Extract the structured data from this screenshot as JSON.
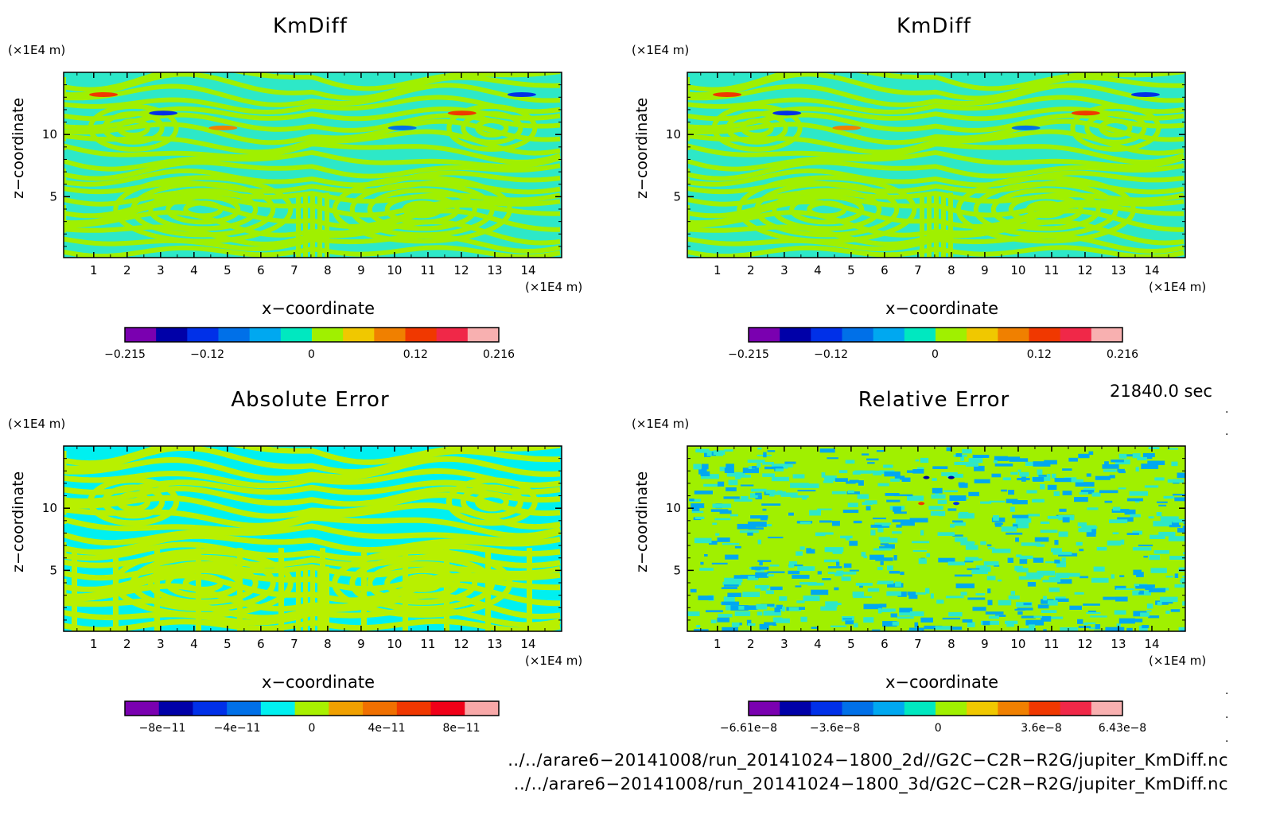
{
  "chart_data": [
    {
      "type": "heatmap",
      "title": "KmDiff",
      "xlabel": "x−coordinate",
      "ylabel": "z−coordinate",
      "x_unit": "(×1E4 m)",
      "z_unit": "(×1E4 m)",
      "x_ticks": [
        "1",
        "2",
        "3",
        "4",
        "5",
        "6",
        "7",
        "8",
        "9",
        "10",
        "11",
        "12",
        "13",
        "14"
      ],
      "z_ticks": [
        "5",
        "10"
      ],
      "xlim": [
        0.1,
        15
      ],
      "zlim": [
        0.1,
        15
      ],
      "colorbar": {
        "colors": [
          "#7a00b0",
          "#0000a8",
          "#0030e8",
          "#0070e8",
          "#00a8f0",
          "#00e8c0",
          "#a0f000",
          "#f0c800",
          "#f08000",
          "#f03800",
          "#f02848",
          "#f8b0b0"
        ],
        "tick_labels": [
          "−0.215",
          "−0.12",
          "0",
          "0.12",
          "0.216"
        ],
        "tick_values": [
          -0.215,
          -0.12,
          0,
          0.12,
          0.216
        ],
        "range": [
          -0.215,
          0.216
        ]
      },
      "style": "smooth"
    },
    {
      "type": "heatmap",
      "title": "KmDiff",
      "xlabel": "x−coordinate",
      "ylabel": "z−coordinate",
      "x_unit": "(×1E4 m)",
      "z_unit": "(×1E4 m)",
      "x_ticks": [
        "1",
        "2",
        "3",
        "4",
        "5",
        "6",
        "7",
        "8",
        "9",
        "10",
        "11",
        "12",
        "13",
        "14"
      ],
      "z_ticks": [
        "5",
        "10"
      ],
      "xlim": [
        0.1,
        15
      ],
      "zlim": [
        0.1,
        15
      ],
      "colorbar": {
        "colors": [
          "#7a00b0",
          "#0000a8",
          "#0030e8",
          "#0070e8",
          "#00a8f0",
          "#00e8c0",
          "#a0f000",
          "#f0c800",
          "#f08000",
          "#f03800",
          "#f02848",
          "#f8b0b0"
        ],
        "tick_labels": [
          "−0.215",
          "−0.12",
          "0",
          "0.12",
          "0.216"
        ],
        "tick_values": [
          -0.215,
          -0.12,
          0,
          0.12,
          0.216
        ],
        "range": [
          -0.215,
          0.216
        ]
      },
      "style": "smooth"
    },
    {
      "type": "heatmap",
      "title": "Absolute Error",
      "xlabel": "x−coordinate",
      "ylabel": "z−coordinate",
      "x_unit": "(×1E4 m)",
      "z_unit": "(×1E4 m)",
      "x_ticks": [
        "1",
        "2",
        "3",
        "4",
        "5",
        "6",
        "7",
        "8",
        "9",
        "10",
        "11",
        "12",
        "13",
        "14"
      ],
      "z_ticks": [
        "5",
        "10"
      ],
      "xlim": [
        0.1,
        15
      ],
      "zlim": [
        0.1,
        15
      ],
      "colorbar": {
        "colors": [
          "#7a00b0",
          "#0000a8",
          "#0030e8",
          "#0070e8",
          "#00f0f0",
          "#a8f000",
          "#f0a000",
          "#f07000",
          "#f03800",
          "#f00018",
          "#f8a8a8"
        ],
        "tick_labels": [
          "−8e−11",
          "−4e−11",
          "0",
          "4e−11",
          "8e−11"
        ],
        "tick_values": [
          -8e-11,
          -4e-11,
          0,
          4e-11,
          8e-11
        ],
        "range": [
          -1e-10,
          1e-10
        ]
      },
      "style": "binary"
    },
    {
      "type": "heatmap",
      "title": "Relative Error",
      "xlabel": "x−coordinate",
      "ylabel": "z−coordinate",
      "x_unit": "(×1E4 m)",
      "z_unit": "(×1E4 m)",
      "x_ticks": [
        "1",
        "2",
        "3",
        "4",
        "5",
        "6",
        "7",
        "8",
        "9",
        "10",
        "11",
        "12",
        "13",
        "14"
      ],
      "z_ticks": [
        "5",
        "10"
      ],
      "xlim": [
        0.1,
        15
      ],
      "zlim": [
        0.1,
        15
      ],
      "colorbar": {
        "colors": [
          "#7a00b0",
          "#0000a8",
          "#0030e8",
          "#0070e8",
          "#00a8f0",
          "#00e8c0",
          "#a0f000",
          "#f0c800",
          "#f08000",
          "#f03800",
          "#f02848",
          "#f8b0b0"
        ],
        "tick_labels": [
          "−6.61e−8",
          "−3.6e−8",
          "0",
          "3.6e−8",
          "6.43e−8"
        ],
        "tick_values": [
          -6.61e-08,
          -3.6e-08,
          0,
          3.6e-08,
          6.43e-08
        ],
        "range": [
          -6.61e-08,
          6.43e-08
        ]
      },
      "style": "noisy"
    }
  ],
  "footer": {
    "time": "21840.0 sec",
    "file1": "../../arare6−20141008/run_20141024−1800_2d//G2C−C2R−R2G/jupiter_KmDiff.nc",
    "file2": "../../arare6−20141008/run_20141024−1800_3d/G2C−C2R−R2G/jupiter_KmDiff.nc"
  }
}
